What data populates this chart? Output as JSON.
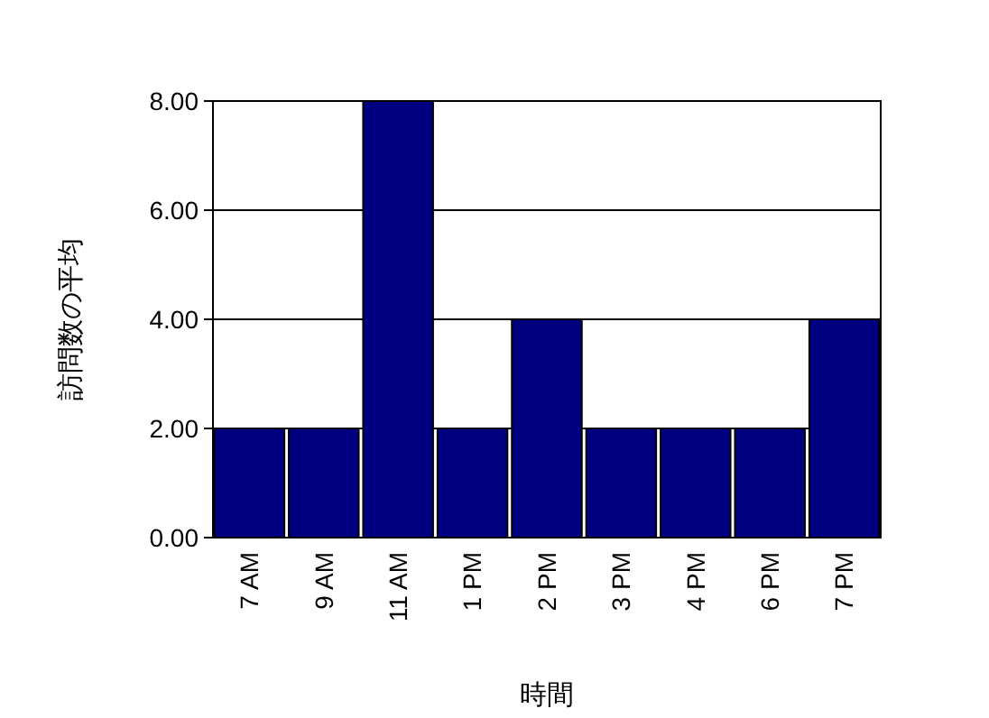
{
  "chart_data": {
    "type": "bar",
    "xlabel": "時間",
    "ylabel": "訪問数の平均",
    "categories": [
      "7 AM",
      "9 AM",
      "11 AM",
      "1 PM",
      "2 PM",
      "3 PM",
      "4 PM",
      "6 PM",
      "7 PM"
    ],
    "values": [
      2,
      2,
      8,
      2,
      4,
      2,
      2,
      2,
      4
    ],
    "color": "#000080",
    "ylim": [
      0,
      8
    ],
    "yticks": [
      {
        "value": 0,
        "label": "0.00"
      },
      {
        "value": 2,
        "label": "2.00"
      },
      {
        "value": 4,
        "label": "4.00"
      },
      {
        "value": 6,
        "label": "6.00"
      },
      {
        "value": 8,
        "label": "8.00"
      }
    ],
    "grid": "y"
  }
}
